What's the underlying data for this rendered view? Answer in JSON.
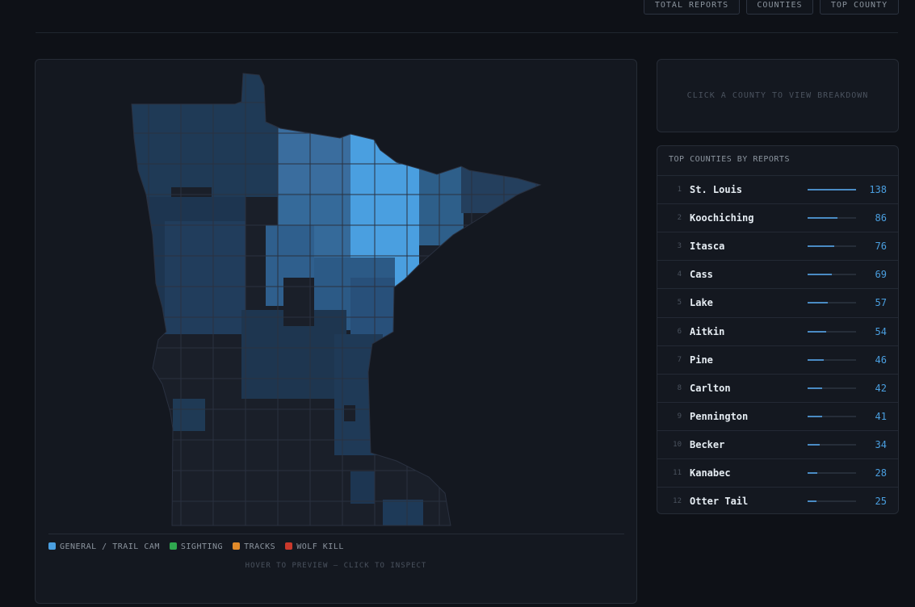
{
  "header": {
    "buttons": [
      "TOTAL REPORTS",
      "COUNTIES",
      "TOP COUNTY"
    ]
  },
  "map": {
    "legend": [
      {
        "label": "GENERAL / TRAIL CAM",
        "color": "#4a9fe0"
      },
      {
        "label": "SIGHTING",
        "color": "#2fa84f"
      },
      {
        "label": "TRACKS",
        "color": "#e08a2a"
      },
      {
        "label": "WOLF KILL",
        "color": "#c9392c"
      }
    ],
    "hint": "HOVER TO PREVIEW — CLICK TO INSPECT"
  },
  "detail": {
    "placeholder": "CLICK A COUNTY TO VIEW BREAKDOWN"
  },
  "top_counties": {
    "title": "TOP COUNTIES BY REPORTS",
    "rows": [
      {
        "rank": 1,
        "name": "St. Louis",
        "value": 138
      },
      {
        "rank": 2,
        "name": "Koochiching",
        "value": 86
      },
      {
        "rank": 3,
        "name": "Itasca",
        "value": 76
      },
      {
        "rank": 4,
        "name": "Cass",
        "value": 69
      },
      {
        "rank": 5,
        "name": "Lake",
        "value": 57
      },
      {
        "rank": 6,
        "name": "Aitkin",
        "value": 54
      },
      {
        "rank": 7,
        "name": "Pine",
        "value": 46
      },
      {
        "rank": 8,
        "name": "Carlton",
        "value": 42
      },
      {
        "rank": 9,
        "name": "Pennington",
        "value": 41
      },
      {
        "rank": 10,
        "name": "Becker",
        "value": 34
      },
      {
        "rank": 11,
        "name": "Kanabec",
        "value": 28
      },
      {
        "rank": 12,
        "name": "Otter Tail",
        "value": 25
      }
    ]
  }
}
